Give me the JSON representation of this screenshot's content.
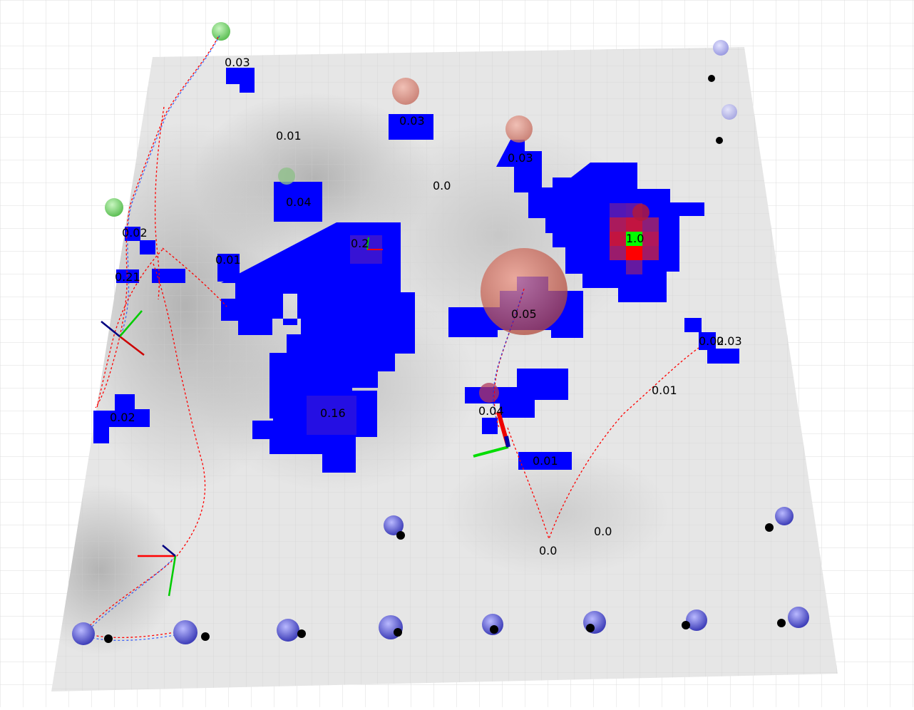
{
  "scene": {
    "background_color": "#ffffff",
    "grid_line_color": "#d9d9d9",
    "floor_color": "#e6e6e6",
    "occupied_cell_color": "#0000ff",
    "hot_cell_color": "#ff0000",
    "target_cell_color": "#00ff00",
    "path_color": "#ff0000",
    "goal_marker_color": "#e07060",
    "visited_marker_color": "#80d880",
    "robot_marker_color": "#6a6ae8",
    "axis_colors": {
      "x": "#ff0000",
      "y": "#00cc00",
      "z": "#000080"
    }
  },
  "value_labels": [
    "0.03",
    "0.03",
    "0.01",
    "0.03",
    "0.0",
    "0.04",
    "0.02",
    "0.2",
    "1.0",
    "0.01",
    "0.21",
    "0.05",
    "0.02",
    "0.03",
    "0.01",
    "0.02",
    "0.16",
    "0.04",
    "0.01",
    "0.0",
    "0.0"
  ],
  "icons": {
    "goal_marker": "sphere-marker-icon",
    "robot_marker": "robot-sphere-icon",
    "pose_axes": "axes-triad-icon"
  }
}
